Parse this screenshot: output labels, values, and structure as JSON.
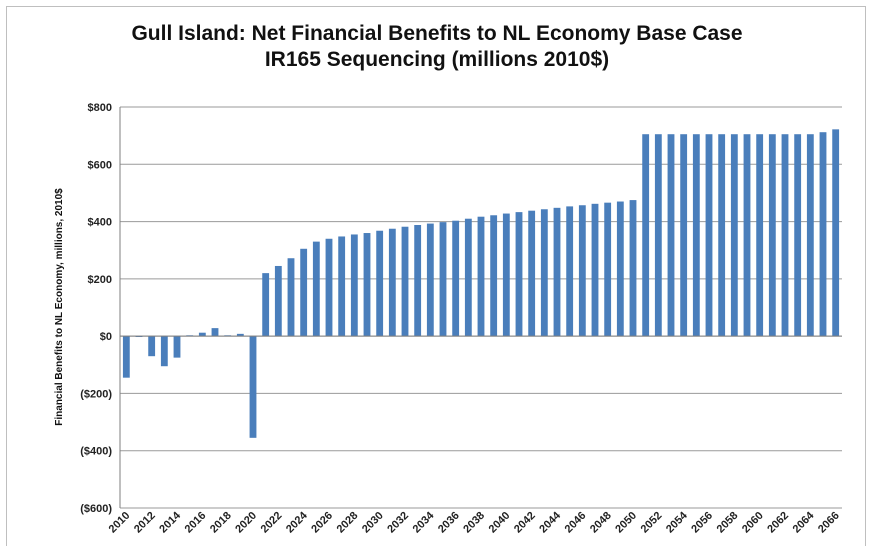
{
  "chart_data": {
    "type": "bar",
    "title": "Gull Island: Net Financial Benefits to NL Economy Base Case",
    "subtitle": "IR165 Sequencing (millions 2010$)",
    "xlabel": "",
    "ylabel": "Financial Benefits to NL Economy, millions, 2010$",
    "ylim": [
      -600,
      800
    ],
    "yticks": [
      800,
      600,
      400,
      200,
      0,
      -200,
      -400,
      -600
    ],
    "ytick_labels": [
      "$800",
      "$600",
      "$400",
      "$200",
      "$0",
      "($200)",
      "($400)",
      "($600)"
    ],
    "xtick_labels": [
      "2010",
      "2012",
      "2014",
      "2016",
      "2018",
      "2020",
      "2022",
      "2024",
      "2026",
      "2028",
      "2030",
      "2032",
      "2034",
      "2036",
      "2038",
      "2040",
      "2042",
      "2044",
      "2046",
      "2048",
      "2050",
      "2052",
      "2054",
      "2056",
      "2058",
      "2060",
      "2062",
      "2064",
      "2066"
    ],
    "grid": true,
    "bar_color": "#4a7ebb",
    "categories": [
      "2010",
      "2011",
      "2012",
      "2013",
      "2014",
      "2015",
      "2016",
      "2017",
      "2018",
      "2019",
      "2020",
      "2021",
      "2022",
      "2023",
      "2024",
      "2025",
      "2026",
      "2027",
      "2028",
      "2029",
      "2030",
      "2031",
      "2032",
      "2033",
      "2034",
      "2035",
      "2036",
      "2037",
      "2038",
      "2039",
      "2040",
      "2041",
      "2042",
      "2043",
      "2044",
      "2045",
      "2046",
      "2047",
      "2048",
      "2049",
      "2050",
      "2051",
      "2052",
      "2053",
      "2054",
      "2055",
      "2056",
      "2057",
      "2058",
      "2059",
      "2060",
      "2061",
      "2062",
      "2063",
      "2064",
      "2065",
      "2066"
    ],
    "values": [
      -145,
      -3,
      -70,
      -105,
      -75,
      3,
      12,
      28,
      3,
      8,
      -355,
      220,
      245,
      272,
      305,
      330,
      340,
      348,
      355,
      360,
      368,
      375,
      382,
      388,
      393,
      398,
      403,
      410,
      417,
      422,
      428,
      433,
      438,
      443,
      448,
      453,
      457,
      462,
      466,
      470,
      475,
      705,
      705,
      705,
      705,
      705,
      705,
      705,
      705,
      705,
      705,
      705,
      705,
      705,
      705,
      712,
      722
    ]
  }
}
